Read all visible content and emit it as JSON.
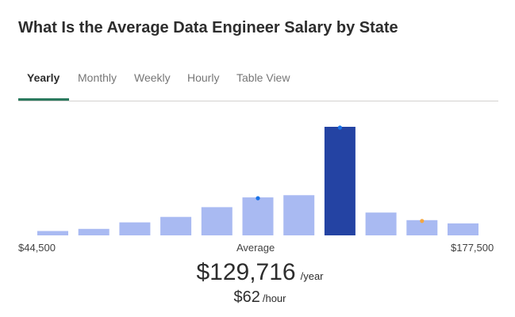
{
  "page": {
    "title": "What Is the Average Data Engineer Salary by State"
  },
  "tabs": [
    {
      "label": "Yearly",
      "active": true
    },
    {
      "label": "Monthly",
      "active": false
    },
    {
      "label": "Weekly",
      "active": false
    },
    {
      "label": "Hourly",
      "active": false
    },
    {
      "label": "Table View",
      "active": false
    }
  ],
  "chart_data": {
    "type": "bar",
    "x_min_label": "$44,500",
    "x_max_label": "$177,500",
    "center_label": "Average",
    "values": [
      4,
      6,
      12,
      17,
      26,
      35,
      37,
      100,
      21,
      14,
      11
    ],
    "highlight_index": 7,
    "markers": [
      {
        "index": 5,
        "color": "#1a73e8"
      },
      {
        "index": 7,
        "color": "#1a73e8"
      },
      {
        "index": 9,
        "color": "#f5a742"
      }
    ],
    "colors": {
      "bar": "#a9baf2",
      "highlight": "#2443a3"
    }
  },
  "salary": {
    "yearly_amount": "$129,716",
    "yearly_unit": "/year",
    "hourly_amount": "$62",
    "hourly_unit": "/hour"
  },
  "colors": {
    "active_tab_underline": "#2b7a5e",
    "title": "#2d2d2d",
    "inactive_tab": "#767676"
  }
}
